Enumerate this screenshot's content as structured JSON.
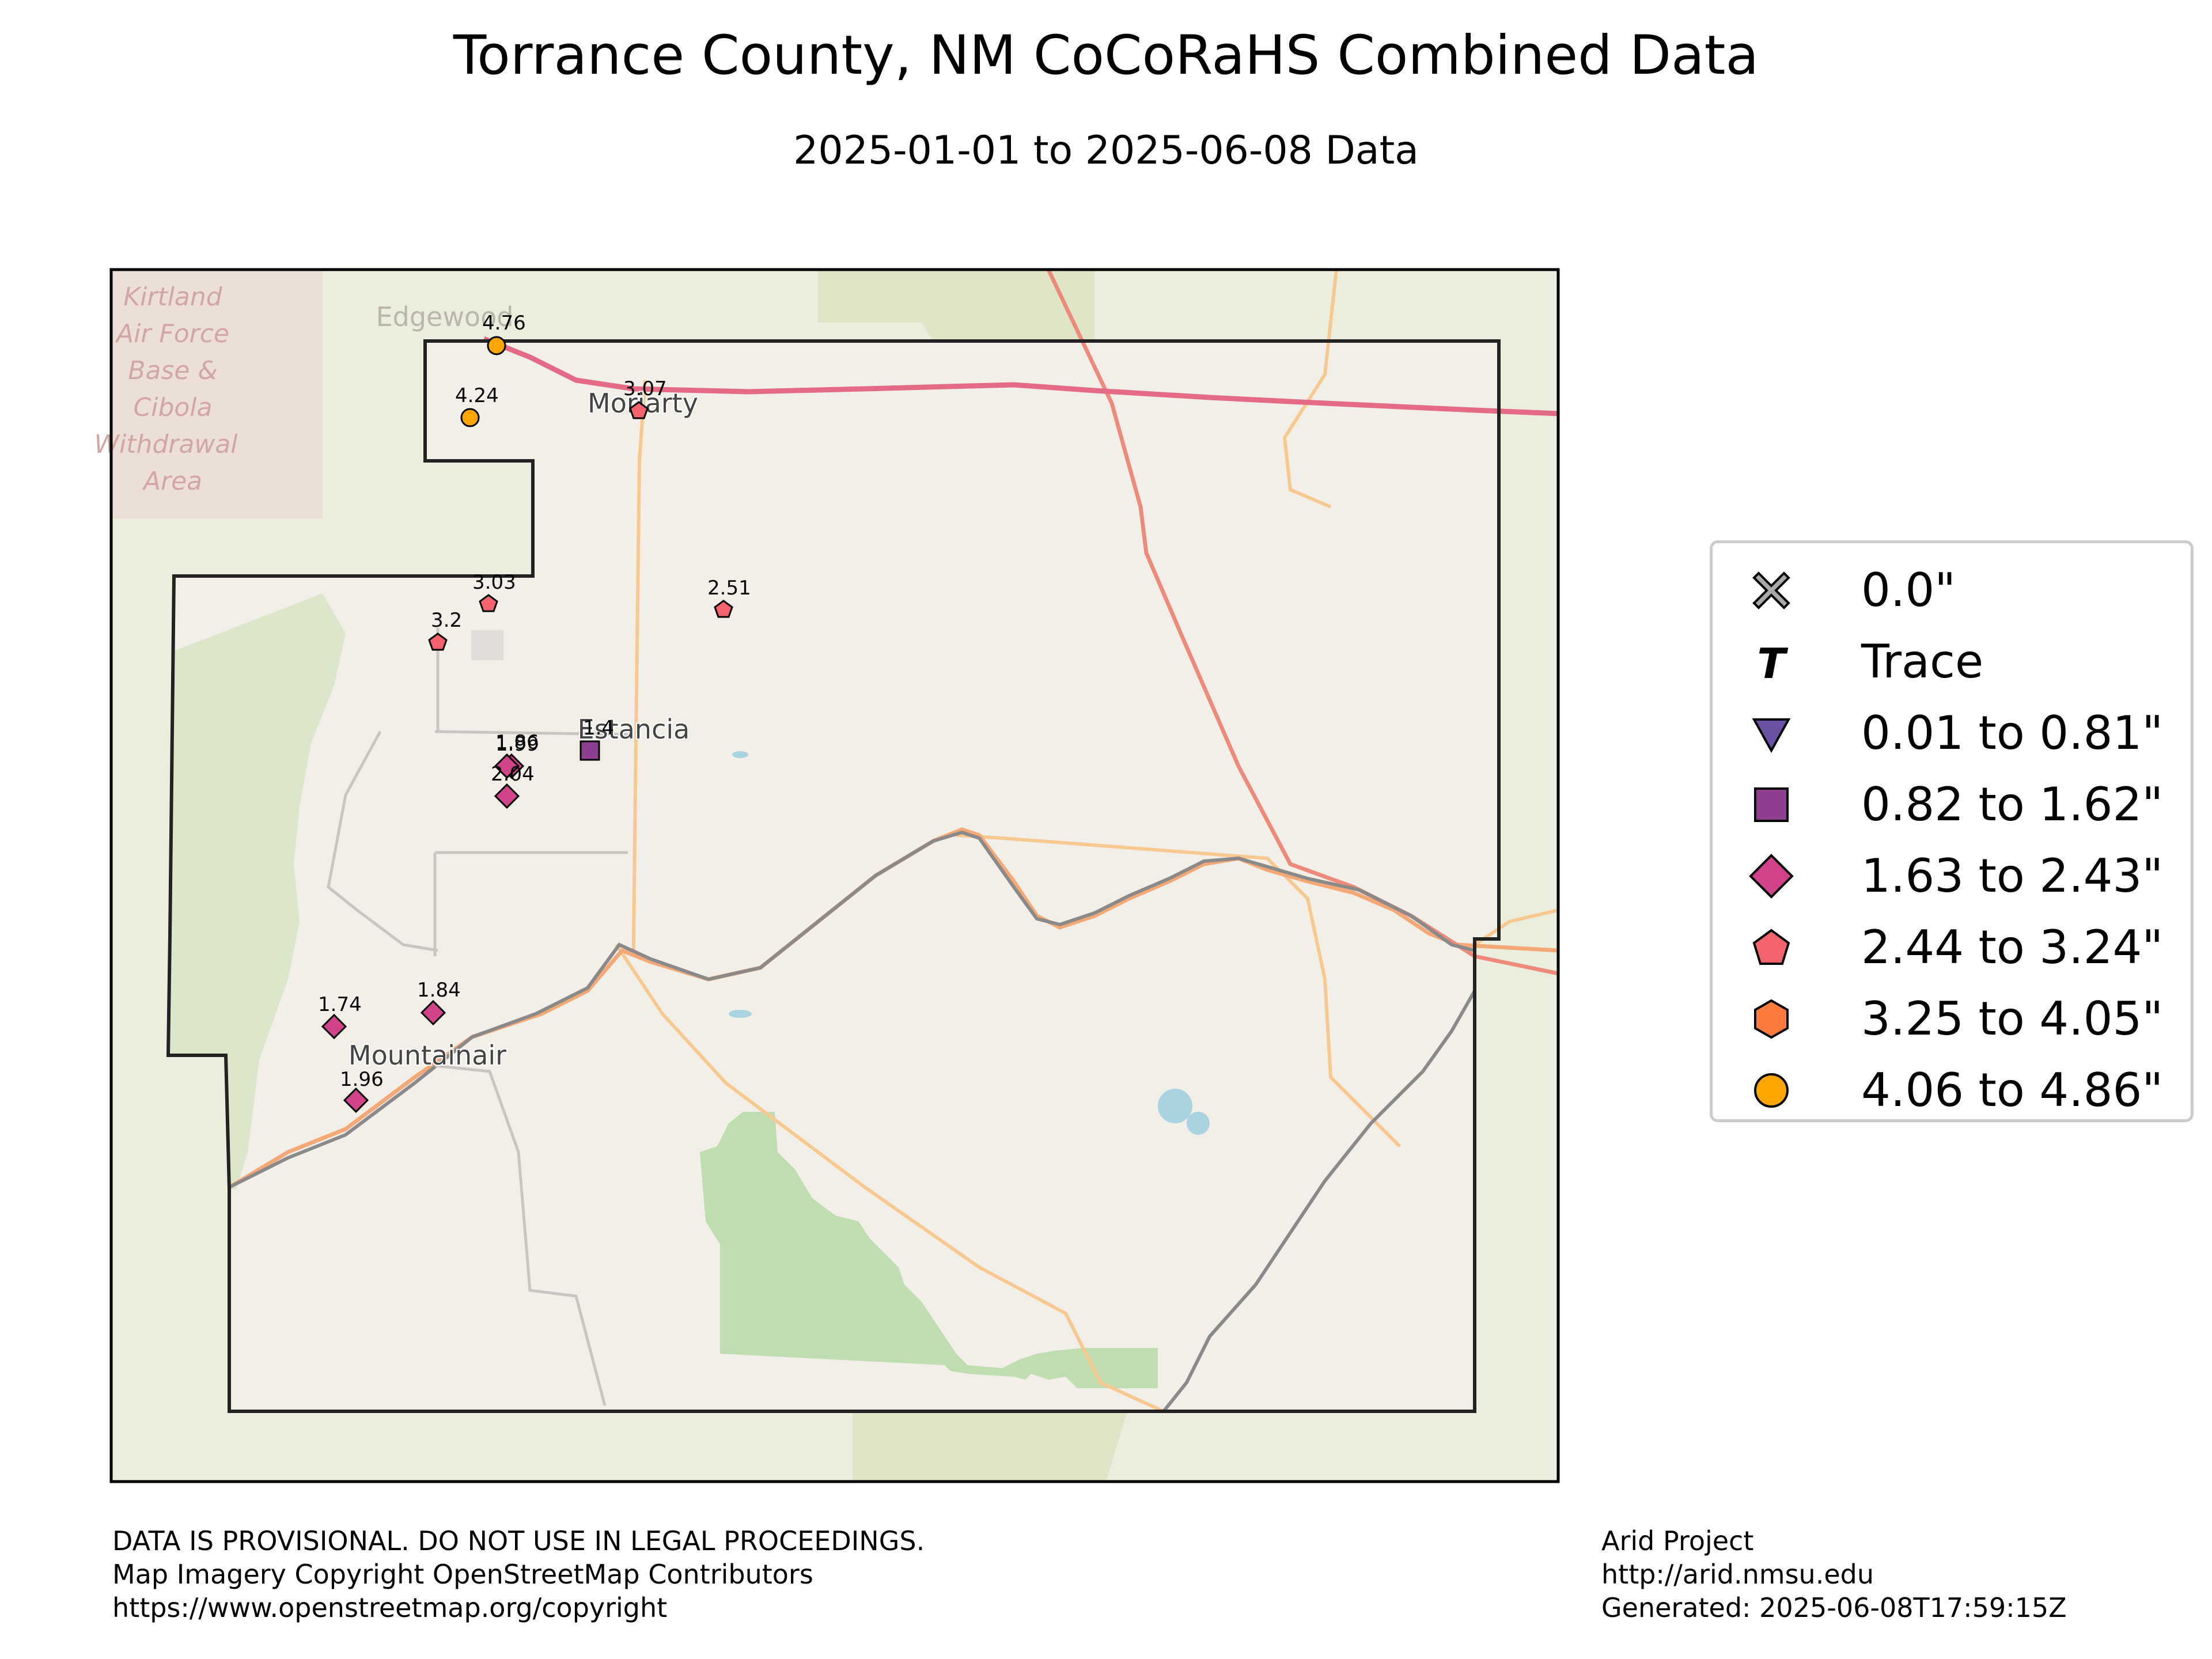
{
  "title": "Torrance County, NM CoCoRaHS Combined Data",
  "subtitle": "2025-01-01 to 2025-06-08 Data",
  "place_labels": [
    {
      "id": "edgewood",
      "text": "Edgewood"
    },
    {
      "id": "moriarty",
      "text": "Moriarty"
    },
    {
      "id": "estancia",
      "text": "Estancia"
    },
    {
      "id": "mountainair",
      "text": "Mountainair"
    },
    {
      "id": "kirtland",
      "text": "Kirtland Air Force Base & Cibola Withdrawal Area"
    }
  ],
  "stations": [
    {
      "value": "4.76",
      "cls": "4.06 to 4.86\""
    },
    {
      "value": "4.24",
      "cls": "4.06 to 4.86\""
    },
    {
      "value": "3.07",
      "cls": "2.44 to 3.24\""
    },
    {
      "value": "2.51",
      "cls": "2.44 to 3.24\""
    },
    {
      "value": "3.03",
      "cls": "2.44 to 3.24\""
    },
    {
      "value": "3.2",
      "cls": "2.44 to 3.24\""
    },
    {
      "value": "1.4",
      "cls": "0.82 to 1.62\""
    },
    {
      "value": "1.99",
      "cls": "1.63 to 2.43\""
    },
    {
      "value": "1.86",
      "cls": "1.63 to 2.43\""
    },
    {
      "value": "2.04",
      "cls": "1.63 to 2.43\""
    },
    {
      "value": "1.74",
      "cls": "1.63 to 2.43\""
    },
    {
      "value": "1.84",
      "cls": "1.63 to 2.43\""
    },
    {
      "value": "1.96",
      "cls": "1.63 to 2.43\""
    }
  ],
  "legend": {
    "items": [
      {
        "label": "0.0\"",
        "symbol": "x",
        "color": "#aaaaaa"
      },
      {
        "label": "Trace",
        "symbol": "T",
        "color": "#000000"
      },
      {
        "label": "0.01 to 0.81\"",
        "symbol": "triangle-down",
        "color": "#6a51a3"
      },
      {
        "label": "0.82 to 1.62\"",
        "symbol": "square",
        "color": "#8e3e8e"
      },
      {
        "label": "1.63 to 2.43\"",
        "symbol": "diamond",
        "color": "#d2448a"
      },
      {
        "label": "2.44 to 3.24\"",
        "symbol": "pentagon",
        "color": "#f5646e"
      },
      {
        "label": "3.25 to 4.05\"",
        "symbol": "hexagon",
        "color": "#fb7a3c"
      },
      {
        "label": "4.06 to 4.86\"",
        "symbol": "circle",
        "color": "#ffa500"
      }
    ]
  },
  "footer": {
    "left": [
      "DATA IS PROVISIONAL. DO NOT USE IN LEGAL PROCEEDINGS.",
      "Map Imagery Copyright OpenStreetMap Contributors",
      "https://www.openstreetmap.org/copyright"
    ],
    "right": [
      "Arid Project",
      "http://arid.nmsu.edu",
      "Generated: 2025-06-08T17:59:15Z"
    ]
  },
  "colors": {
    "basemap": "#f2efe9",
    "outside": "#eceedd",
    "forest": "#c0ddb1",
    "highway": "#e46a86",
    "primary_road": "#f4a876",
    "secondary_road": "#f8c891",
    "railway": "#888888",
    "water": "#a9d3df",
    "boundary": "#222222"
  }
}
